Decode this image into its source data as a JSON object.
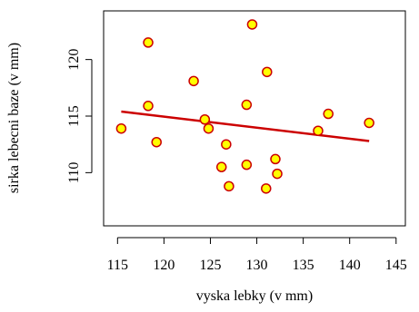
{
  "chart_data": {
    "type": "scatter",
    "title": "",
    "xlabel": "vyska lebky (v mm)",
    "ylabel": "sirka lebecni baze (v mm)",
    "xlim": [
      113.5,
      146
    ],
    "ylim": [
      105.3,
      124.3
    ],
    "x_ticks": [
      115,
      120,
      125,
      130,
      135,
      140,
      145
    ],
    "y_ticks": [
      110,
      115,
      120
    ],
    "grid": false,
    "legend": "none",
    "points": [
      {
        "x": 115.4,
        "y": 113.9
      },
      {
        "x": 118.3,
        "y": 121.5
      },
      {
        "x": 118.3,
        "y": 115.9
      },
      {
        "x": 119.2,
        "y": 112.7
      },
      {
        "x": 123.2,
        "y": 118.1
      },
      {
        "x": 124.4,
        "y": 114.7
      },
      {
        "x": 124.8,
        "y": 113.9
      },
      {
        "x": 126.2,
        "y": 110.5
      },
      {
        "x": 126.7,
        "y": 112.5
      },
      {
        "x": 127.0,
        "y": 108.8
      },
      {
        "x": 128.9,
        "y": 110.7
      },
      {
        "x": 128.9,
        "y": 116.0
      },
      {
        "x": 129.5,
        "y": 123.1
      },
      {
        "x": 131.0,
        "y": 108.6
      },
      {
        "x": 131.1,
        "y": 118.9
      },
      {
        "x": 132.0,
        "y": 111.2
      },
      {
        "x": 132.2,
        "y": 109.9
      },
      {
        "x": 136.6,
        "y": 113.7
      },
      {
        "x": 137.7,
        "y": 115.2
      },
      {
        "x": 142.1,
        "y": 114.4
      }
    ],
    "regression_line": {
      "x": [
        115.4,
        142.1
      ],
      "y": [
        115.4,
        112.8
      ]
    },
    "colors": {
      "point_fill": "#ffff00",
      "point_stroke": "#cc0000",
      "line": "#cc0000",
      "axis": "#000000"
    }
  }
}
